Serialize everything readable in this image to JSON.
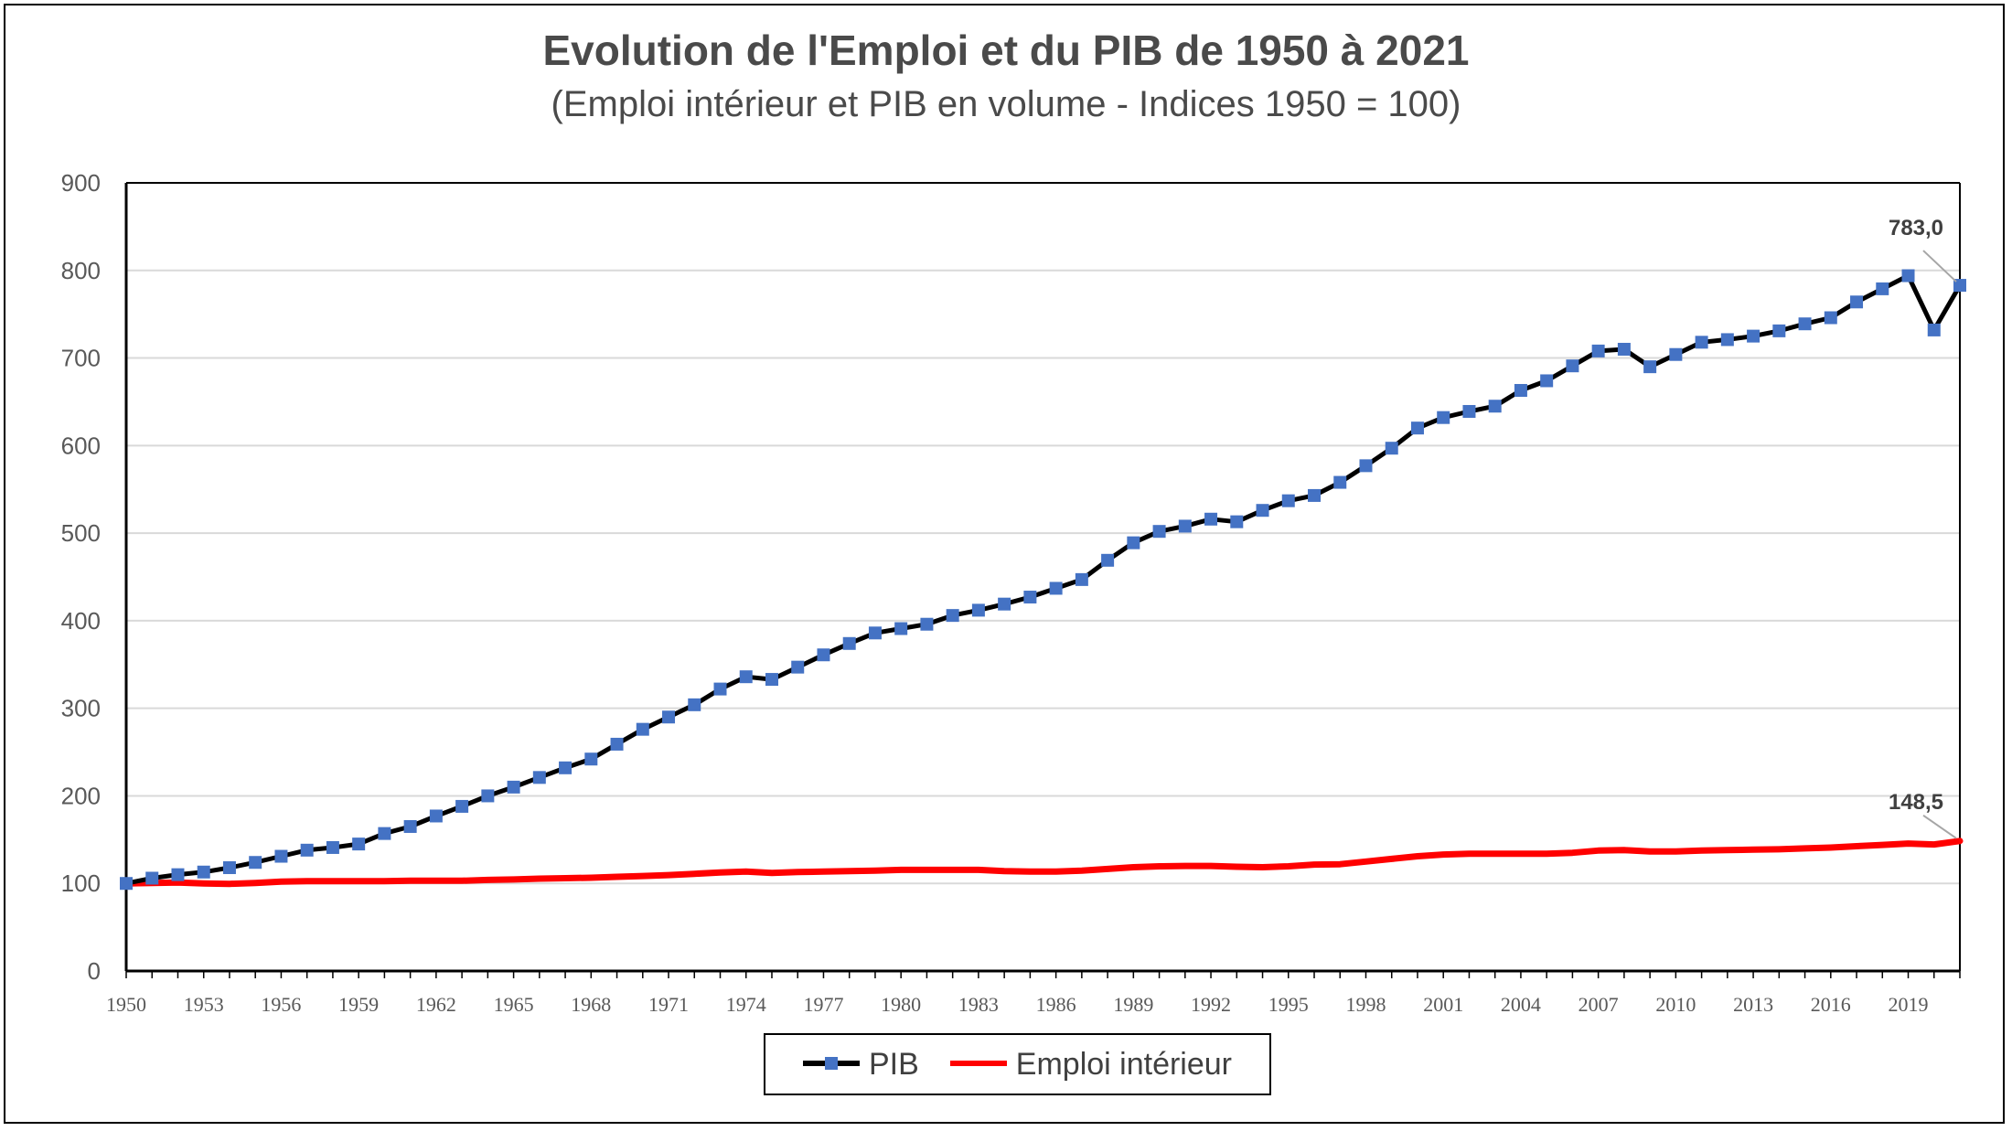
{
  "chart_data": {
    "type": "line",
    "title": "Evolution de l'Emploi et du PIB de 1950 à 2021",
    "subtitle": "(Emploi intérieur et PIB en volume - Indices 1950 = 100)",
    "xlabel": "",
    "ylabel": "",
    "ylim": [
      0,
      900
    ],
    "yticks": [
      0,
      100,
      200,
      300,
      400,
      500,
      600,
      700,
      800,
      900
    ],
    "xlim": [
      1950,
      2021
    ],
    "xtick_labels": [
      "1950",
      "1953",
      "1956",
      "1959",
      "1962",
      "1965",
      "1968",
      "1971",
      "1974",
      "1977",
      "1980",
      "1983",
      "1986",
      "1989",
      "1992",
      "1995",
      "1998",
      "2001",
      "2004",
      "2007",
      "2010",
      "2013",
      "2016",
      "2019"
    ],
    "grid": true,
    "legend": "bottom",
    "x": [
      1950,
      1951,
      1952,
      1953,
      1954,
      1955,
      1956,
      1957,
      1958,
      1959,
      1960,
      1961,
      1962,
      1963,
      1964,
      1965,
      1966,
      1967,
      1968,
      1969,
      1970,
      1971,
      1972,
      1973,
      1974,
      1975,
      1976,
      1977,
      1978,
      1979,
      1980,
      1981,
      1982,
      1983,
      1984,
      1985,
      1986,
      1987,
      1988,
      1989,
      1990,
      1991,
      1992,
      1993,
      1994,
      1995,
      1996,
      1997,
      1998,
      1999,
      2000,
      2001,
      2002,
      2003,
      2004,
      2005,
      2006,
      2007,
      2008,
      2009,
      2010,
      2011,
      2012,
      2013,
      2014,
      2015,
      2016,
      2017,
      2018,
      2019,
      2020,
      2021
    ],
    "series": [
      {
        "name": "PIB",
        "color": "#000000",
        "marker_color": "#4472C4",
        "values": [
          100,
          106,
          110,
          113,
          118,
          124,
          131,
          138,
          141,
          145,
          157,
          165,
          177,
          188,
          200,
          210,
          221,
          232,
          242,
          259,
          276,
          290,
          304,
          322,
          336,
          333,
          347,
          361,
          374,
          386,
          391,
          396,
          406,
          412,
          419,
          427,
          437,
          447,
          469,
          489,
          502,
          508,
          516,
          513,
          526,
          537,
          543,
          558,
          577,
          597,
          620,
          632,
          639,
          645,
          663,
          674,
          691,
          708,
          710,
          690,
          704,
          718,
          721,
          725,
          731,
          739,
          746,
          764,
          779,
          794,
          732,
          783.0
        ]
      },
      {
        "name": "Emploi intérieur",
        "color": "#FF0000",
        "values": [
          100,
          100.5,
          101,
          100,
          99.5,
          100.5,
          102,
          102.5,
          102.5,
          102.5,
          102.5,
          103,
          103,
          103,
          104,
          104.5,
          105.5,
          106,
          106.5,
          107.5,
          108.5,
          109.5,
          111,
          112.5,
          113.5,
          112,
          113,
          113.5,
          114,
          114.5,
          115.5,
          115.5,
          115.5,
          115.5,
          114,
          113.5,
          113.5,
          114.5,
          116.5,
          118.5,
          119.5,
          120,
          120,
          119,
          118.5,
          119.5,
          121.5,
          122,
          125,
          128,
          131,
          133,
          134,
          134,
          134,
          134,
          135,
          137.5,
          138,
          136.5,
          136.5,
          137.5,
          138,
          138.5,
          139,
          140,
          141,
          142.5,
          144,
          145.5,
          144.5,
          148.5
        ]
      }
    ],
    "annotations": [
      {
        "series": "PIB",
        "year": 2021,
        "text": "783,0"
      },
      {
        "series": "Emploi intérieur",
        "year": 2021,
        "text": "148,5"
      }
    ]
  },
  "legend_items": {
    "pib": "PIB",
    "emploi": "Emploi intérieur"
  }
}
